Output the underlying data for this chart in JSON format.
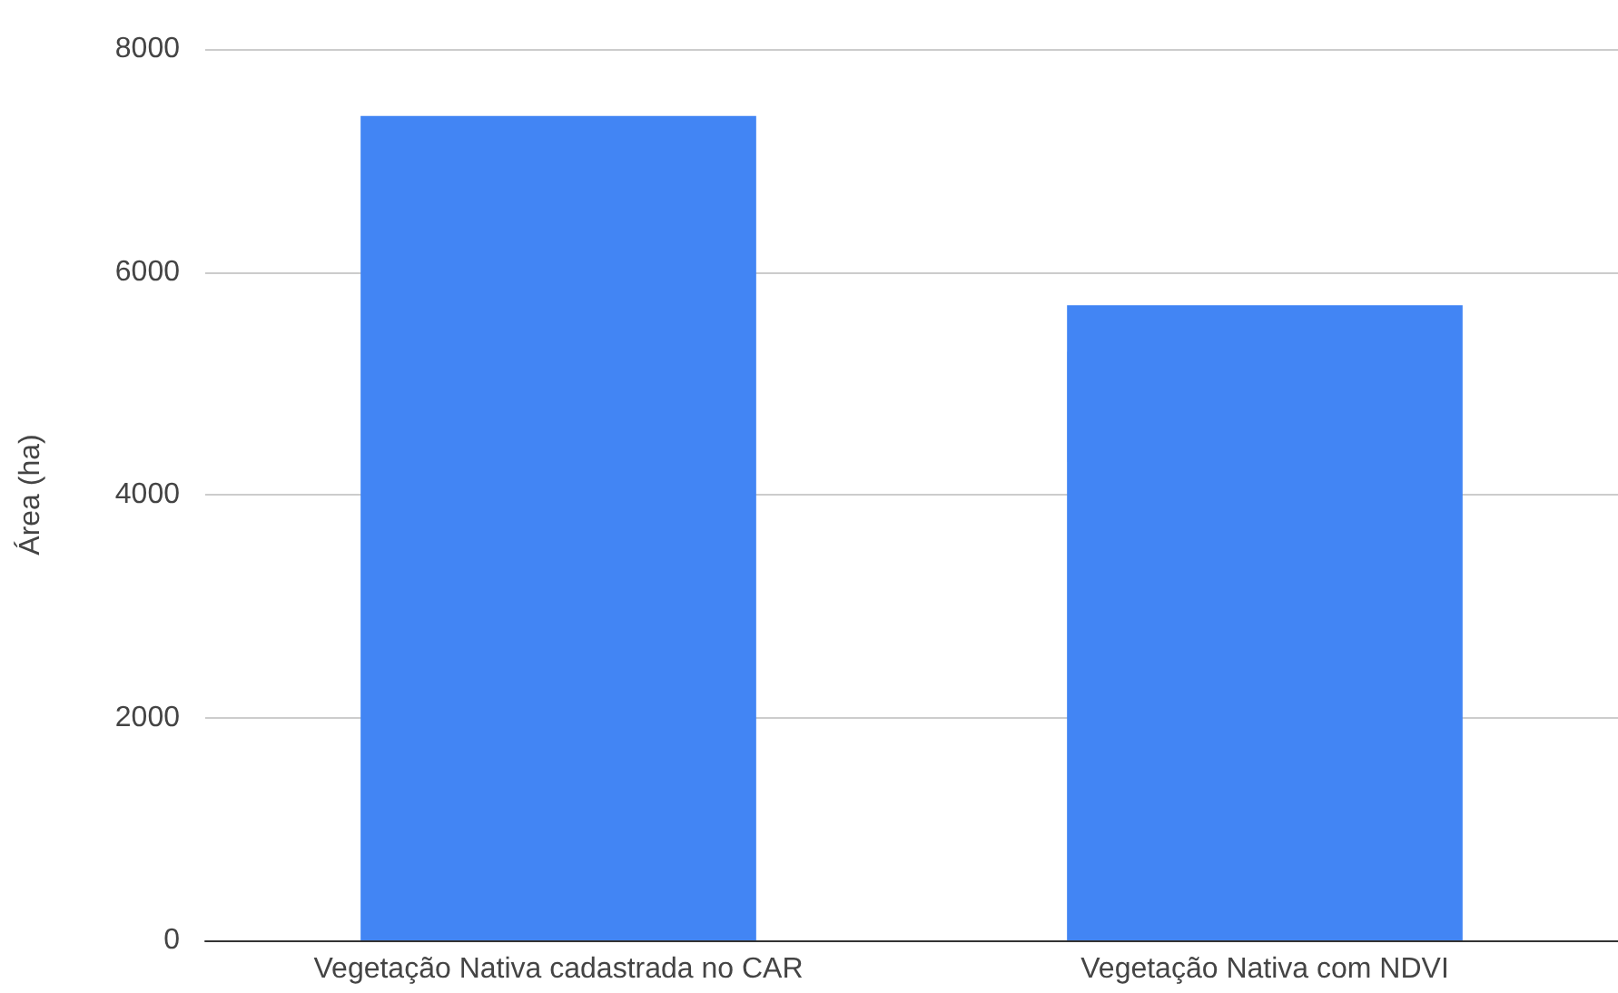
{
  "chart_data": {
    "type": "bar",
    "ylabel": "Área (ha)",
    "categories": [
      "Vegetação Nativa cadastrada no CAR",
      "Vegetação Nativa com NDVI"
    ],
    "values": [
      7400,
      5700
    ],
    "color": "#4285f4",
    "ylim": [
      0,
      8000
    ],
    "yticks": [
      0,
      2000,
      4000,
      6000,
      8000
    ],
    "grid": "y"
  }
}
